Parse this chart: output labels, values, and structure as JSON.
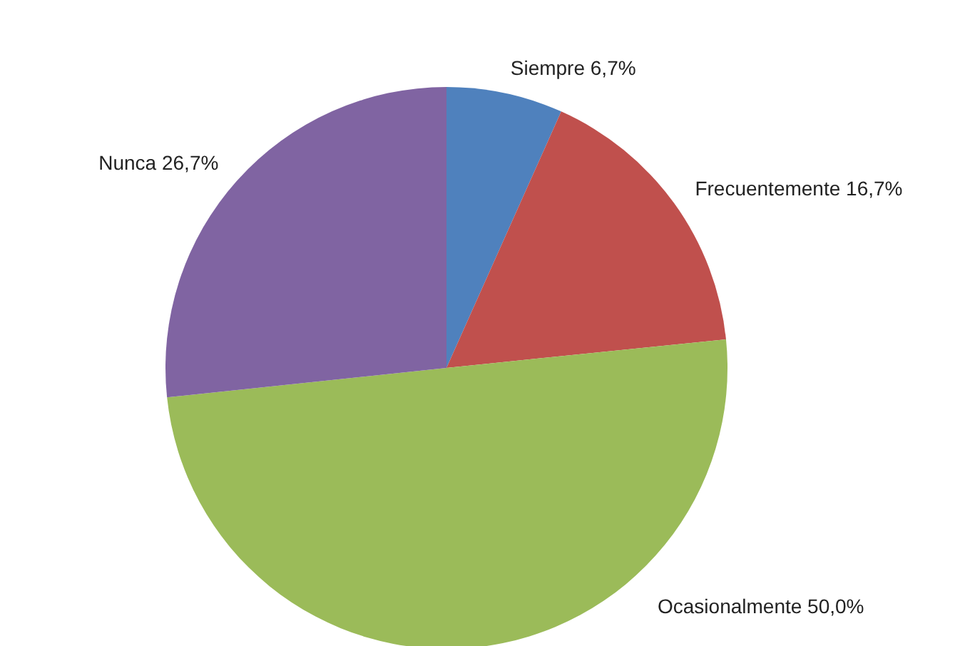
{
  "chart_data": {
    "type": "pie",
    "categories": [
      "Siempre",
      "Frecuentemente",
      "Ocasionalmente",
      "Nunca"
    ],
    "values": [
      6.7,
      16.7,
      50.0,
      26.7
    ],
    "colors": [
      "#4f81bd",
      "#c0504d",
      "#9bbb59",
      "#8064a2"
    ],
    "value_labels": [
      "6,7%",
      "16,7%",
      "50,0%",
      "26,7%"
    ]
  }
}
